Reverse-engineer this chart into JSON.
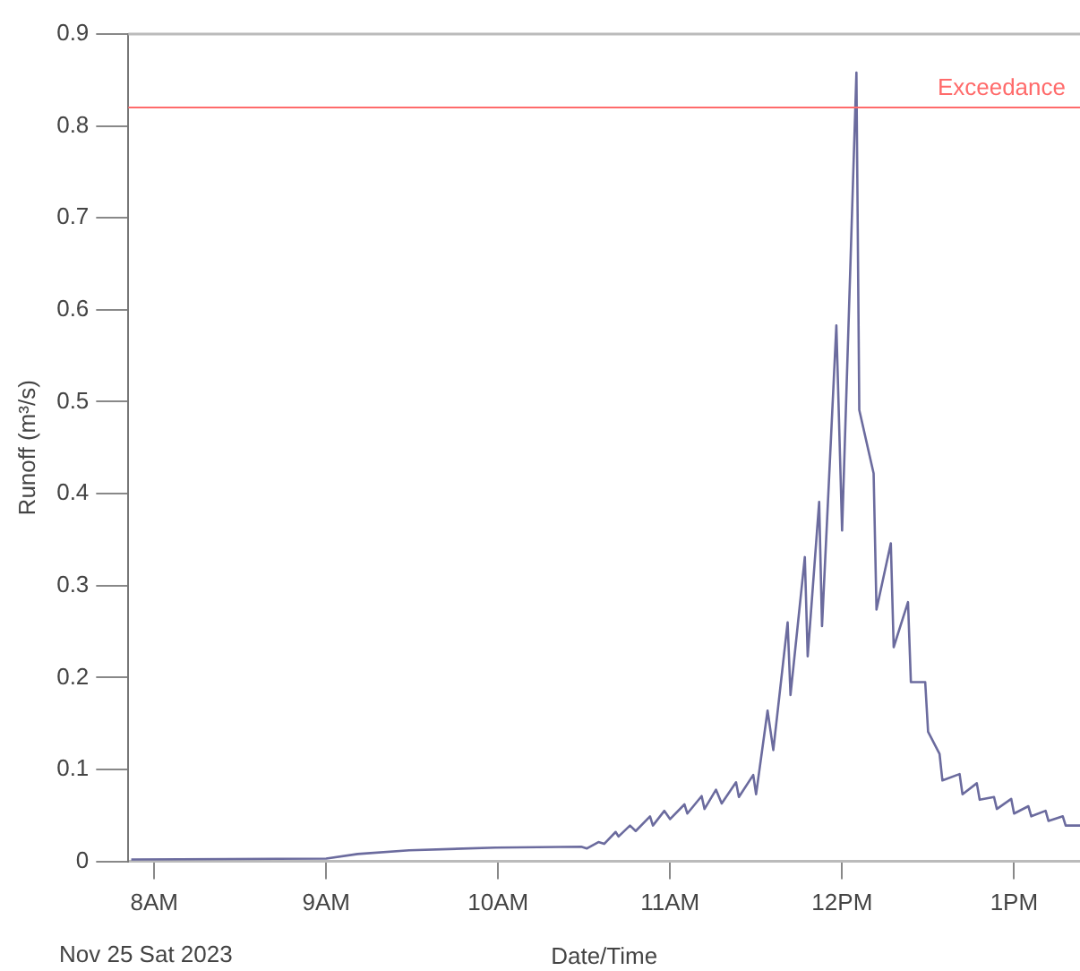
{
  "chart_data": {
    "type": "line",
    "xlabel": "Date/Time",
    "ylabel": "Runoff (m³/s)",
    "annotations": [
      "Nov 25 Sat 2023"
    ],
    "x": [
      "2023-11-25T07:52",
      "2023-11-25T09:00",
      "2023-11-25T09:11",
      "2023-11-25T09:29",
      "2023-11-25T09:59",
      "2023-11-25T10:29",
      "2023-11-25T10:31",
      "2023-11-25T10:35",
      "2023-11-25T10:37",
      "2023-11-25T10:41",
      "2023-11-25T10:42",
      "2023-11-25T10:46",
      "2023-11-25T10:48",
      "2023-11-25T10:53",
      "2023-11-25T10:54",
      "2023-11-25T10:58",
      "2023-11-25T11:00",
      "2023-11-25T11:05",
      "2023-11-25T11:06",
      "2023-11-25T11:11",
      "2023-11-25T11:12",
      "2023-11-25T11:16",
      "2023-11-25T11:18",
      "2023-11-25T11:23",
      "2023-11-25T11:24",
      "2023-11-25T11:29",
      "2023-11-25T11:30",
      "2023-11-25T11:34",
      "2023-11-25T11:36",
      "2023-11-25T11:41",
      "2023-11-25T11:42",
      "2023-11-25T11:47",
      "2023-11-25T11:48",
      "2023-11-25T11:52",
      "2023-11-25T11:53",
      "2023-11-25T11:58",
      "2023-11-25T12:00",
      "2023-11-25T12:05",
      "2023-11-25T12:06",
      "2023-11-25T12:11",
      "2023-11-25T12:12",
      "2023-11-25T12:17",
      "2023-11-25T12:18",
      "2023-11-25T12:23",
      "2023-11-25T12:24",
      "2023-11-25T12:29",
      "2023-11-25T12:30",
      "2023-11-25T12:34",
      "2023-11-25T12:35",
      "2023-11-25T12:41",
      "2023-11-25T12:42",
      "2023-11-25T12:47",
      "2023-11-25T12:48",
      "2023-11-25T12:53",
      "2023-11-25T12:54",
      "2023-11-25T12:59",
      "2023-11-25T13:00",
      "2023-11-25T13:05",
      "2023-11-25T13:06",
      "2023-11-25T13:11",
      "2023-11-25T13:12",
      "2023-11-25T13:17",
      "2023-11-25T13:18",
      "2023-11-25T13:23"
    ],
    "series": [
      {
        "color": "#6b6b9e",
        "values": [
          0.002,
          0.003,
          0.008,
          0.012,
          0.015,
          0.016,
          0.014,
          0.021,
          0.019,
          0.032,
          0.027,
          0.039,
          0.033,
          0.049,
          0.039,
          0.055,
          0.046,
          0.062,
          0.052,
          0.071,
          0.057,
          0.078,
          0.063,
          0.086,
          0.07,
          0.094,
          0.073,
          0.164,
          0.121,
          0.26,
          0.181,
          0.331,
          0.223,
          0.391,
          0.256,
          0.583,
          0.36,
          0.858,
          0.491,
          0.422,
          0.274,
          0.346,
          0.233,
          0.282,
          0.195,
          0.195,
          0.141,
          0.117,
          0.088,
          0.095,
          0.073,
          0.085,
          0.067,
          0.07,
          0.057,
          0.068,
          0.052,
          0.06,
          0.049,
          0.055,
          0.044,
          0.049,
          0.039,
          0.039
        ]
      }
    ],
    "xlim": [
      "2023-11-25T07:51",
      "2023-11-25T13:23"
    ],
    "xticks": [
      {
        "value": "2023-11-25T08:00",
        "label": "8AM"
      },
      {
        "value": "2023-11-25T09:00",
        "label": "9AM"
      },
      {
        "value": "2023-11-25T10:00",
        "label": "10AM"
      },
      {
        "value": "2023-11-25T11:00",
        "label": "11AM"
      },
      {
        "value": "2023-11-25T12:00",
        "label": "12PM"
      },
      {
        "value": "2023-11-25T13:00",
        "label": "1PM"
      }
    ],
    "ylim": [
      0,
      0.9
    ],
    "yticks": [
      0,
      0.1,
      0.2,
      0.3,
      0.4,
      0.5,
      0.6,
      0.7,
      0.8,
      0.9
    ],
    "ref_lines": [
      {
        "axis": "y",
        "value": 0.82,
        "label": "Exceedance",
        "color": "#ff6b6b"
      }
    ],
    "grid": false,
    "legend": false,
    "marker": "none",
    "line_style": "solid"
  }
}
